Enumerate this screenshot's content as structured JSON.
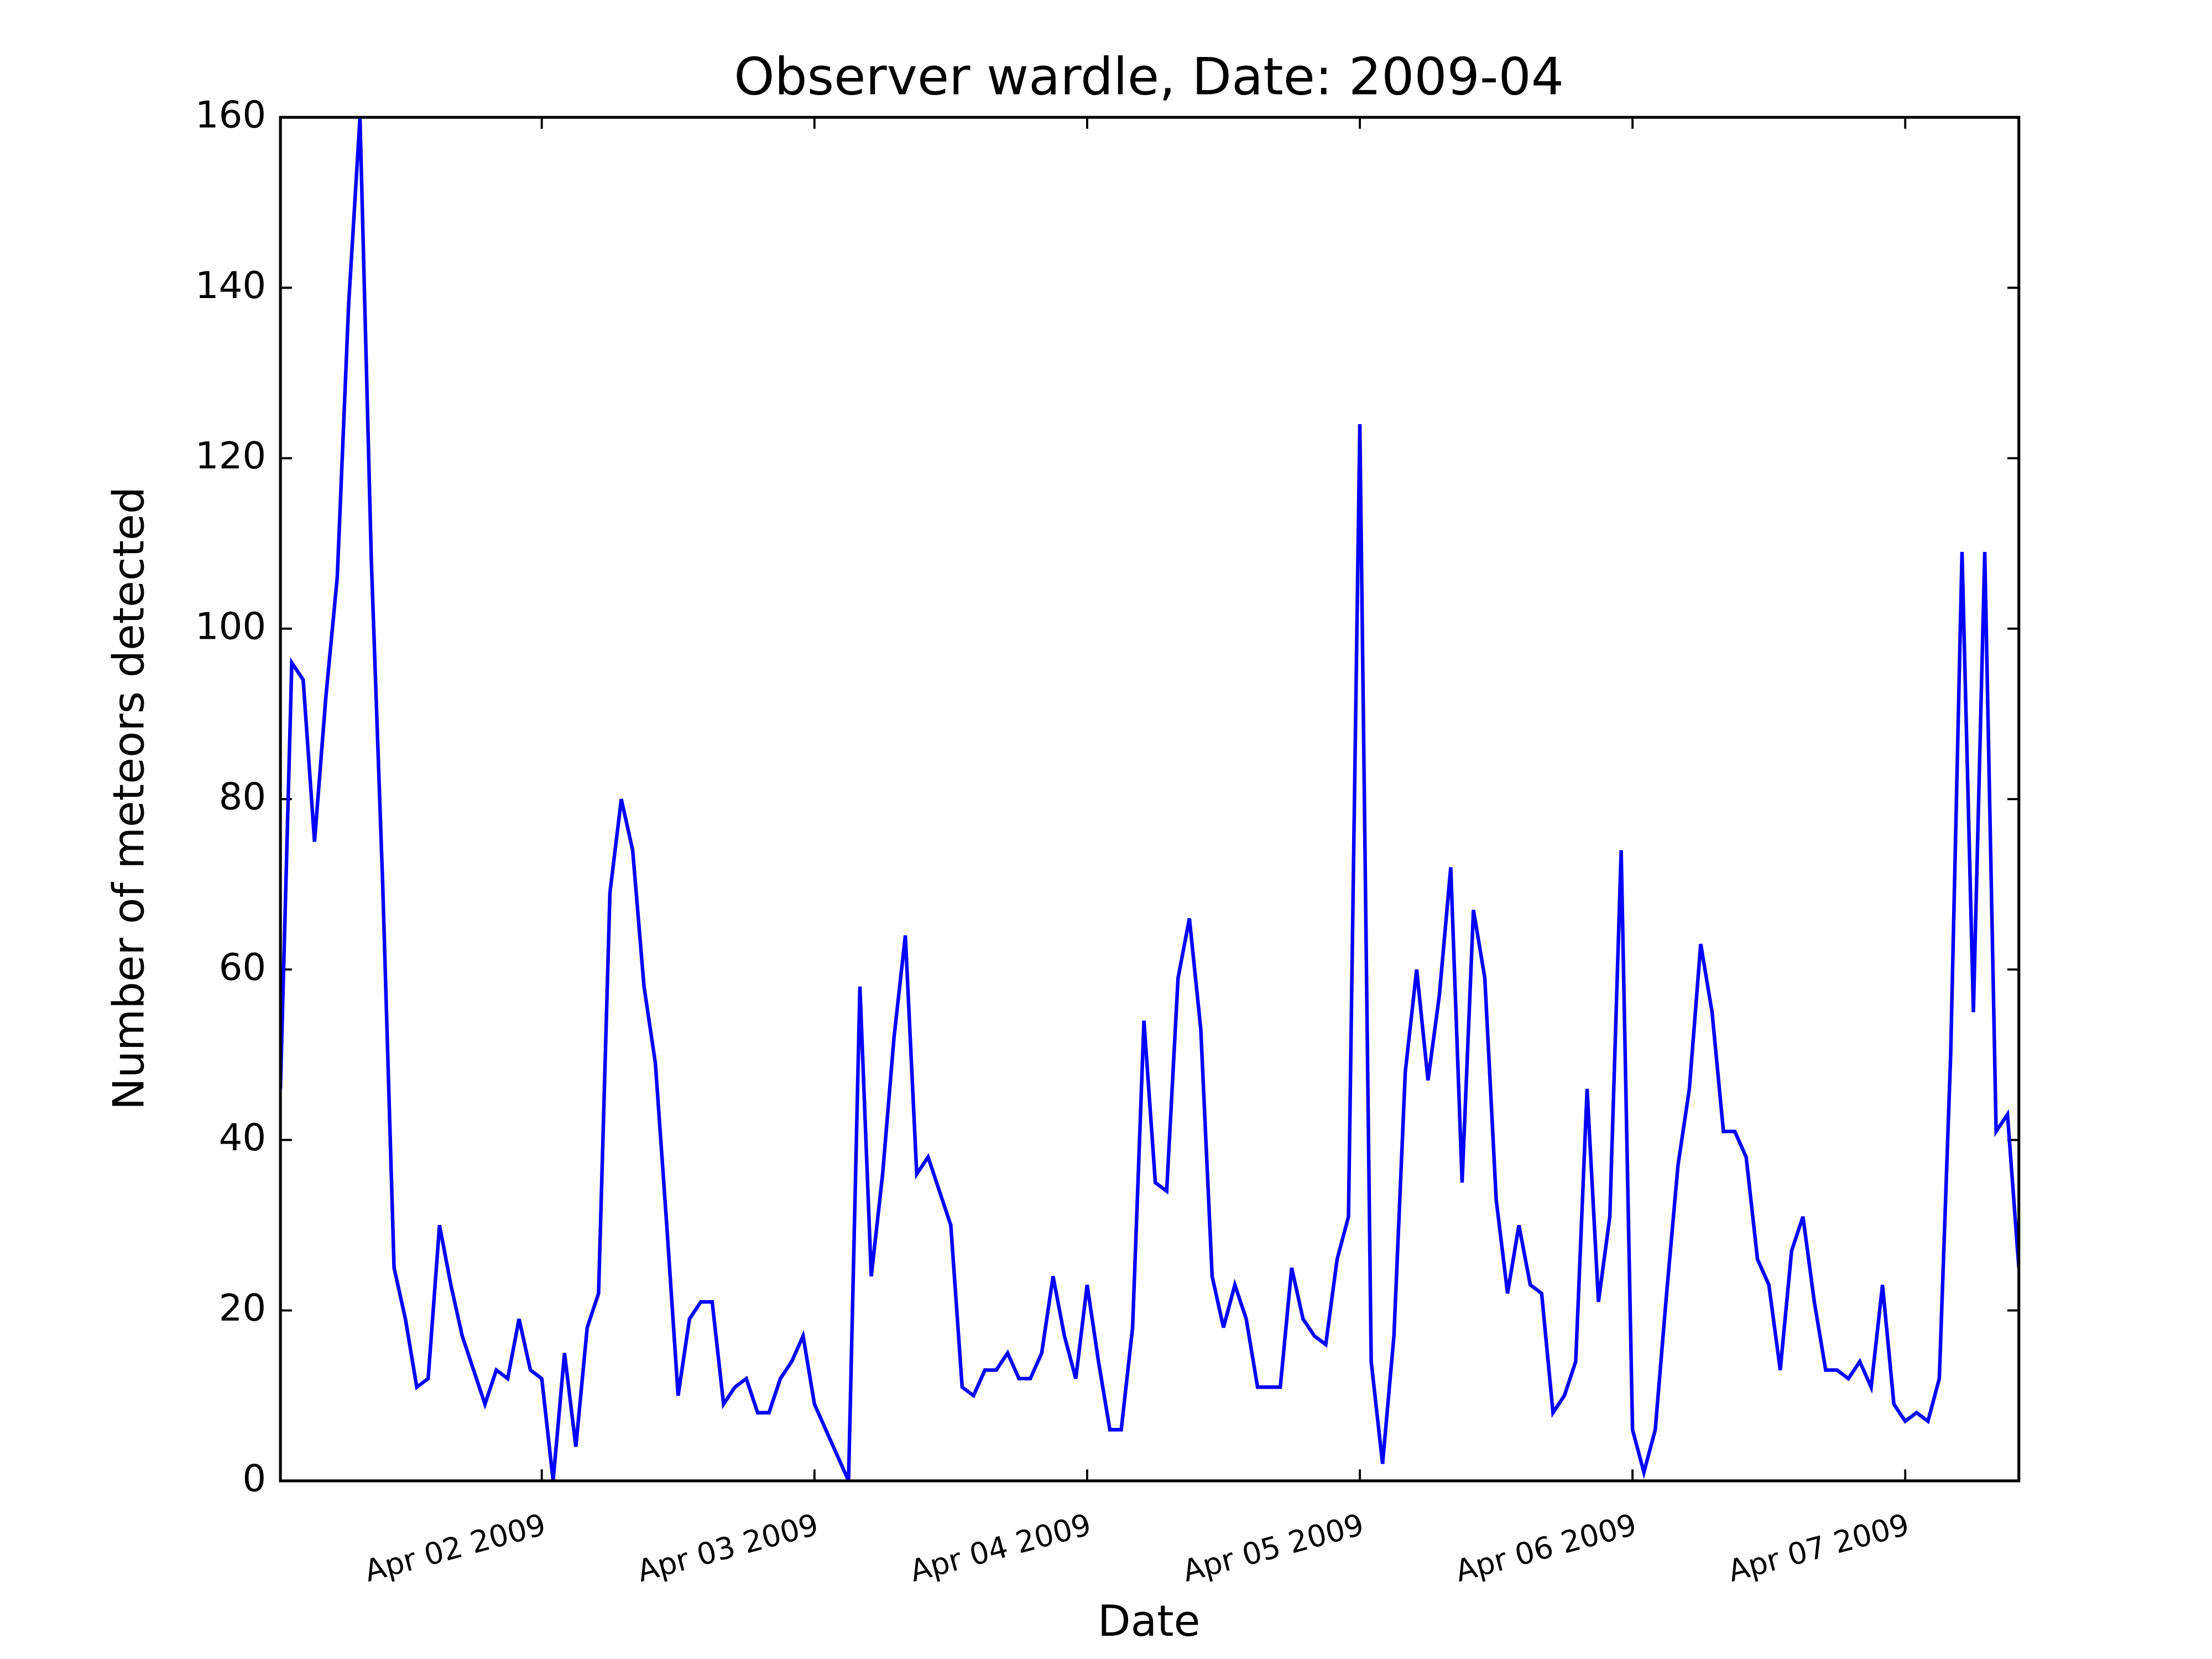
{
  "chart_data": {
    "type": "line",
    "title": "Observer wardle, Date: 2009-04",
    "x_label": "Date",
    "y_label": "Number of meteors detected",
    "x": [
      1,
      2,
      3,
      4,
      5,
      6,
      7,
      8,
      9,
      10,
      11,
      12,
      13,
      14,
      15,
      16,
      17,
      18,
      19,
      20,
      21,
      22,
      23,
      24,
      25,
      26,
      27,
      28,
      29,
      30,
      31,
      32,
      33,
      34,
      35,
      36,
      37,
      38,
      39,
      40,
      41,
      42,
      43,
      44,
      45,
      46,
      47,
      48,
      49,
      50,
      51,
      52,
      53,
      54,
      55,
      56,
      57,
      58,
      59,
      60,
      61,
      62,
      63,
      64,
      65,
      66,
      67,
      68,
      69,
      70,
      71,
      72,
      73,
      74,
      75,
      76,
      77,
      78,
      79,
      80,
      81,
      82,
      83,
      84,
      85,
      86,
      87,
      88,
      89,
      90,
      91,
      92,
      93,
      94,
      95,
      96,
      97,
      98,
      99,
      100,
      101,
      102,
      103,
      104,
      105,
      106,
      107,
      108,
      109,
      110,
      111,
      112,
      113,
      114,
      115,
      116,
      117,
      118,
      119,
      120,
      121,
      122,
      123,
      124,
      125,
      126,
      127,
      128,
      129,
      130,
      131,
      132,
      133,
      134,
      135,
      136,
      137,
      138,
      139,
      140,
      141,
      142,
      143,
      144,
      145,
      146,
      147,
      148,
      149,
      150,
      151,
      152,
      153,
      154
    ],
    "series": [
      {
        "color": "#0000ff",
        "values": [
          46,
          96,
          94,
          75,
          92,
          106,
          138,
          160,
          108,
          70,
          25,
          19,
          11,
          12,
          30,
          23,
          17,
          13,
          9,
          13,
          12,
          19,
          13,
          12,
          0,
          15,
          4,
          18,
          22,
          69,
          80,
          74,
          58,
          49,
          30,
          10,
          19,
          21,
          21,
          9,
          11,
          12,
          8,
          8,
          12,
          14,
          17,
          9,
          6,
          3,
          0,
          58,
          24,
          36,
          52,
          64,
          36,
          38,
          34,
          30,
          11,
          10,
          13,
          13,
          15,
          12,
          12,
          15,
          24,
          17,
          12,
          23,
          14,
          6,
          6,
          18,
          54,
          35,
          34,
          59,
          66,
          53,
          24,
          18,
          23,
          19,
          11,
          11,
          11,
          25,
          19,
          17,
          16,
          26,
          31,
          124,
          14,
          2,
          17,
          48,
          60,
          47,
          57,
          72,
          35,
          67,
          59,
          33,
          22,
          30,
          23,
          22,
          8,
          10,
          14,
          46,
          21,
          31,
          74,
          6,
          1,
          6,
          22,
          37,
          46,
          63,
          55,
          41,
          41,
          38,
          26,
          23,
          13,
          27,
          31,
          21,
          13,
          13,
          12,
          14,
          11,
          23,
          9,
          7,
          8,
          7,
          12,
          50,
          109,
          55,
          109,
          41,
          43,
          25
        ]
      }
    ],
    "xlim": [
      1,
      154
    ],
    "xticks": [
      {
        "value": 24,
        "label": "Apr 02 2009"
      },
      {
        "value": 48,
        "label": "Apr 03 2009"
      },
      {
        "value": 72,
        "label": "Apr 04 2009"
      },
      {
        "value": 96,
        "label": "Apr 05 2009"
      },
      {
        "value": 120,
        "label": "Apr 06 2009"
      },
      {
        "value": 144,
        "label": "Apr 07 2009"
      }
    ],
    "ylim": [
      0,
      160
    ],
    "yticks": [
      0,
      20,
      40,
      60,
      80,
      100,
      120,
      140,
      160
    ]
  }
}
